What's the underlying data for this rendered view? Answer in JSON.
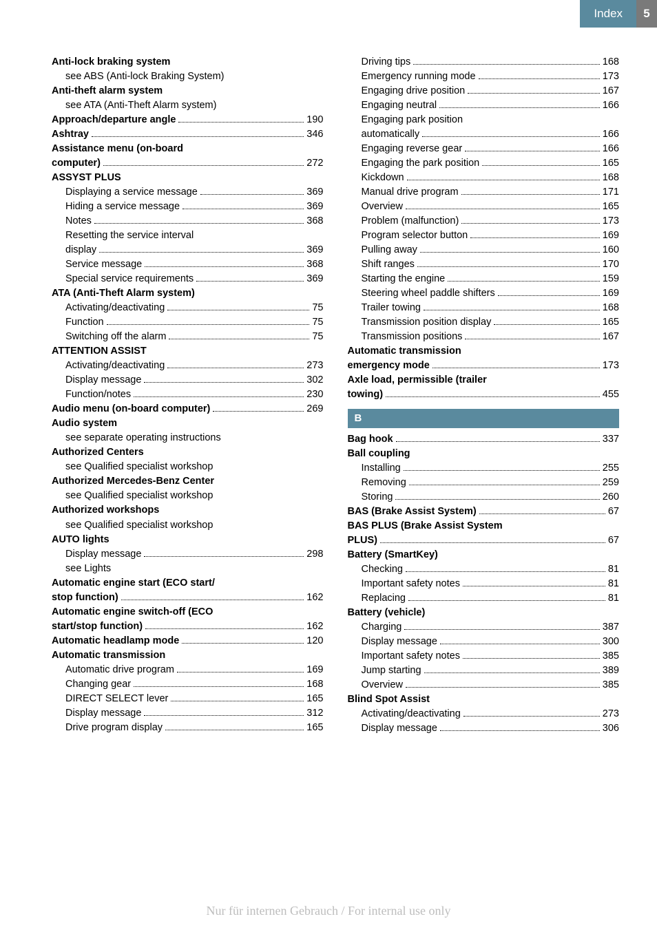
{
  "header": {
    "tab_label": "Index",
    "page_number": "5"
  },
  "left_column": [
    {
      "label": "Anti-lock braking system",
      "bold": true,
      "indent": 0
    },
    {
      "label": "see ABS (Anti-lock Braking System)",
      "indent": 1
    },
    {
      "label": "Anti-theft alarm system",
      "bold": true,
      "indent": 0
    },
    {
      "label": "see ATA (Anti-Theft Alarm system)",
      "indent": 1
    },
    {
      "label": "Approach/departure angle",
      "page": "190",
      "bold": true,
      "indent": 0
    },
    {
      "label": "Ashtray",
      "page": "346",
      "bold": true,
      "indent": 0
    },
    {
      "label": "Assistance menu (on-board",
      "bold": true,
      "indent": 0
    },
    {
      "label": "computer)",
      "page": "272",
      "bold": true,
      "indent": 0
    },
    {
      "label": "ASSYST PLUS",
      "bold": true,
      "indent": 0
    },
    {
      "label": "Displaying a service message",
      "page": "369",
      "indent": 1
    },
    {
      "label": "Hiding a service message",
      "page": "369",
      "indent": 1
    },
    {
      "label": "Notes",
      "page": "368",
      "indent": 1
    },
    {
      "label": "Resetting the service interval",
      "indent": 1
    },
    {
      "label": "display",
      "page": "369",
      "indent": 1
    },
    {
      "label": "Service message",
      "page": "368",
      "indent": 1
    },
    {
      "label": "Special service requirements",
      "page": "369",
      "indent": 1
    },
    {
      "label": "ATA (Anti-Theft Alarm system)",
      "bold": true,
      "indent": 0
    },
    {
      "label": "Activating/deactivating",
      "page": "75",
      "indent": 1
    },
    {
      "label": "Function",
      "page": "75",
      "indent": 1
    },
    {
      "label": "Switching off the alarm",
      "page": "75",
      "indent": 1
    },
    {
      "label": "ATTENTION ASSIST",
      "bold": true,
      "indent": 0
    },
    {
      "label": "Activating/deactivating",
      "page": "273",
      "indent": 1
    },
    {
      "label": "Display message",
      "page": "302",
      "indent": 1
    },
    {
      "label": "Function/notes",
      "page": "230",
      "indent": 1
    },
    {
      "label": "Audio menu (on-board computer)",
      "page": "269",
      "bold": true,
      "indent": 0
    },
    {
      "label": "Audio system",
      "bold": true,
      "indent": 0
    },
    {
      "label": "see separate operating instructions",
      "indent": 1
    },
    {
      "label": "Authorized Centers",
      "bold": true,
      "indent": 0
    },
    {
      "label": "see Qualified specialist workshop",
      "indent": 1
    },
    {
      "label": "Authorized Mercedes-Benz Center",
      "bold": true,
      "indent": 0
    },
    {
      "label": "see Qualified specialist workshop",
      "indent": 1
    },
    {
      "label": "Authorized workshops",
      "bold": true,
      "indent": 0
    },
    {
      "label": "see Qualified specialist workshop",
      "indent": 1
    },
    {
      "label": "AUTO lights",
      "bold": true,
      "indent": 0
    },
    {
      "label": "Display message",
      "page": "298",
      "indent": 1
    },
    {
      "label": "see Lights",
      "indent": 1
    },
    {
      "label": "Automatic engine start (ECO start/",
      "bold": true,
      "indent": 0
    },
    {
      "label": "stop function)",
      "page": "162",
      "bold": true,
      "indent": 0
    },
    {
      "label": "Automatic engine switch-off (ECO",
      "bold": true,
      "indent": 0
    },
    {
      "label": "start/stop function)",
      "page": "162",
      "bold": true,
      "indent": 0
    },
    {
      "label": "Automatic headlamp mode",
      "page": "120",
      "bold": true,
      "indent": 0
    },
    {
      "label": "Automatic transmission",
      "bold": true,
      "indent": 0
    },
    {
      "label": "Automatic drive program",
      "page": "169",
      "indent": 1
    },
    {
      "label": "Changing gear",
      "page": "168",
      "indent": 1
    },
    {
      "label": "DIRECT SELECT lever",
      "page": "165",
      "indent": 1
    },
    {
      "label": "Display message",
      "page": "312",
      "indent": 1
    },
    {
      "label": "Drive program display",
      "page": "165",
      "indent": 1
    }
  ],
  "right_column_top": [
    {
      "label": "Driving tips",
      "page": "168",
      "indent": 1
    },
    {
      "label": "Emergency running mode",
      "page": "173",
      "indent": 1
    },
    {
      "label": "Engaging drive position",
      "page": "167",
      "indent": 1
    },
    {
      "label": "Engaging neutral",
      "page": "166",
      "indent": 1
    },
    {
      "label": "Engaging park position",
      "indent": 1
    },
    {
      "label": "automatically",
      "page": "166",
      "indent": 1
    },
    {
      "label": "Engaging reverse gear",
      "page": "166",
      "indent": 1
    },
    {
      "label": "Engaging the park position",
      "page": "165",
      "indent": 1
    },
    {
      "label": "Kickdown",
      "page": "168",
      "indent": 1
    },
    {
      "label": "Manual drive program",
      "page": "171",
      "indent": 1
    },
    {
      "label": "Overview",
      "page": "165",
      "indent": 1
    },
    {
      "label": "Problem (malfunction)",
      "page": "173",
      "indent": 1
    },
    {
      "label": "Program selector button",
      "page": "169",
      "indent": 1
    },
    {
      "label": "Pulling away",
      "page": "160",
      "indent": 1
    },
    {
      "label": "Shift ranges",
      "page": "170",
      "indent": 1
    },
    {
      "label": "Starting the engine",
      "page": "159",
      "indent": 1
    },
    {
      "label": "Steering wheel paddle shifters",
      "page": "169",
      "indent": 1
    },
    {
      "label": "Trailer towing",
      "page": "168",
      "indent": 1
    },
    {
      "label": "Transmission position display",
      "page": "165",
      "indent": 1
    },
    {
      "label": "Transmission positions",
      "page": "167",
      "indent": 1
    },
    {
      "label": "Automatic transmission",
      "bold": true,
      "indent": 0
    },
    {
      "label": "emergency mode",
      "page": "173",
      "bold": true,
      "indent": 0
    },
    {
      "label": "Axle load, permissible (trailer",
      "bold": true,
      "indent": 0
    },
    {
      "label": "towing)",
      "page": "455",
      "bold": true,
      "indent": 0
    }
  ],
  "section_b_label": "B",
  "right_column_bottom": [
    {
      "label": "Bag hook",
      "page": "337",
      "bold": true,
      "indent": 0
    },
    {
      "label": "Ball coupling",
      "bold": true,
      "indent": 0
    },
    {
      "label": "Installing",
      "page": "255",
      "indent": 1
    },
    {
      "label": "Removing",
      "page": "259",
      "indent": 1
    },
    {
      "label": "Storing",
      "page": "260",
      "indent": 1
    },
    {
      "label": "BAS (Brake Assist System)",
      "page": "67",
      "bold": true,
      "indent": 0
    },
    {
      "label": "BAS PLUS (Brake Assist System",
      "bold": true,
      "indent": 0
    },
    {
      "label": "PLUS)",
      "page": "67",
      "bold": true,
      "indent": 0
    },
    {
      "label": "Battery (SmartKey)",
      "bold": true,
      "indent": 0
    },
    {
      "label": "Checking",
      "page": "81",
      "indent": 1
    },
    {
      "label": "Important safety notes",
      "page": "81",
      "indent": 1
    },
    {
      "label": "Replacing",
      "page": "81",
      "indent": 1
    },
    {
      "label": "Battery (vehicle)",
      "bold": true,
      "indent": 0
    },
    {
      "label": "Charging",
      "page": "387",
      "indent": 1
    },
    {
      "label": "Display message",
      "page": "300",
      "indent": 1
    },
    {
      "label": "Important safety notes",
      "page": "385",
      "indent": 1
    },
    {
      "label": "Jump starting",
      "page": "389",
      "indent": 1
    },
    {
      "label": "Overview",
      "page": "385",
      "indent": 1
    },
    {
      "label": "Blind Spot Assist",
      "bold": true,
      "indent": 0
    },
    {
      "label": "Activating/deactivating",
      "page": "273",
      "indent": 1
    },
    {
      "label": "Display message",
      "page": "306",
      "indent": 1
    }
  ],
  "watermark": "Nur für internen Gebrauch / For internal use only",
  "colors": {
    "header_blue": "#5a8a9e",
    "header_gray": "#7a7a7a",
    "text": "#000000",
    "background": "#ffffff",
    "watermark": "#bdbdbd"
  }
}
